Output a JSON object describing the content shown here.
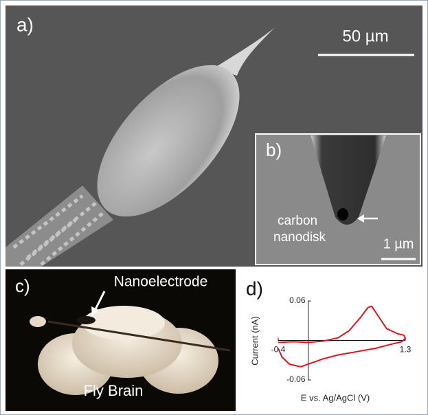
{
  "panels": {
    "a": {
      "label": "a)",
      "scale_bar": "50 µm"
    },
    "b": {
      "label": "b)",
      "annotation_line1": "carbon",
      "annotation_line2": "nanodisk",
      "scale_bar": "1 µm"
    },
    "c": {
      "label": "c)",
      "electrode_label": "Nanoelectrode",
      "brain_label": "Fly Brain"
    },
    "d": {
      "label": "d)"
    }
  },
  "chart_data": {
    "type": "line",
    "xlabel": "E vs. Ag/AgCl (V)",
    "ylabel": "Current (nA)",
    "xlim": [
      -0.4,
      1.3
    ],
    "ylim": [
      -0.06,
      0.06
    ],
    "xticks": [
      -0.4,
      1.3
    ],
    "yticks": [
      0.06,
      -0.06
    ],
    "series": [
      {
        "color": "#d8141e",
        "x": [
          -0.4,
          -0.2,
          0,
          0.2,
          0.4,
          0.55,
          0.7,
          0.8,
          0.85,
          0.95,
          1.05,
          1.2,
          1.28,
          1.3,
          1.25,
          1.1,
          0.9,
          0.6,
          0.4,
          0.2,
          0.05,
          -0.1,
          -0.25,
          -0.35,
          -0.4
        ],
        "values": [
          -0.003,
          -0.002,
          -0.003,
          -0.001,
          0.004,
          0.015,
          0.035,
          0.05,
          0.052,
          0.035,
          0.018,
          0.01,
          0.008,
          0.003,
          -0.002,
          -0.006,
          -0.012,
          -0.018,
          -0.022,
          -0.028,
          -0.034,
          -0.04,
          -0.036,
          -0.025,
          -0.012
        ]
      }
    ]
  }
}
